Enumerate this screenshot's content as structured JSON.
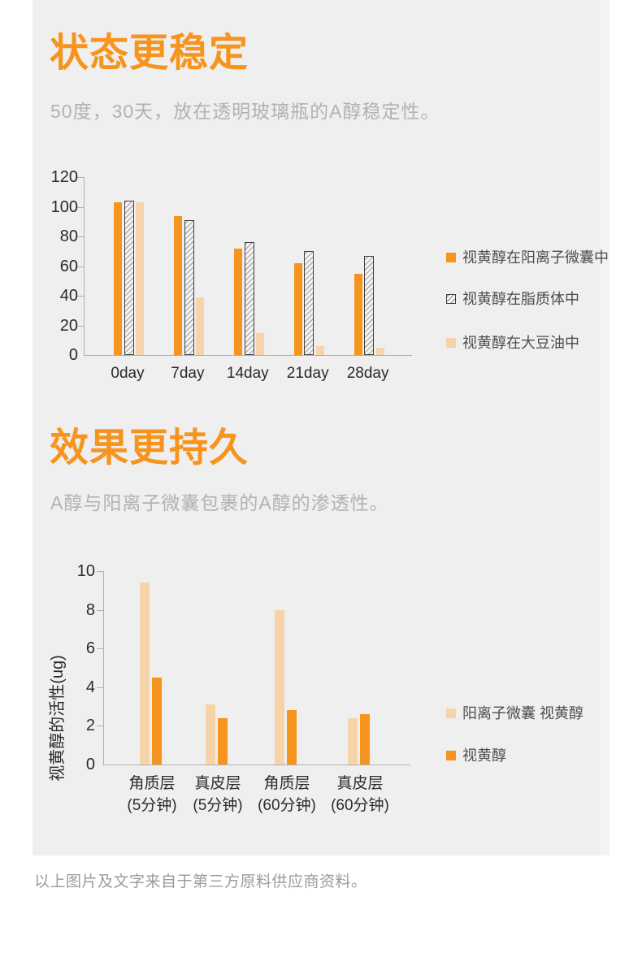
{
  "sections": [
    {
      "title": "状态更稳定",
      "subtitle": "50度，30天，放在透明玻璃瓶的A醇稳定性。"
    },
    {
      "title": "效果更持久",
      "subtitle": "A醇与阳离子微囊包裹的A醇的渗透性。"
    }
  ],
  "footnote": "以上图片及文字来自于第三方原料供应商资料。",
  "colors": {
    "accent_orange": "#f7941e",
    "peach": "#f6d3a8",
    "panel_bg": "#efefef",
    "axis_line": "#b0b0b0",
    "tick_text": "#2b2b2b",
    "legend_text": "#4d4d4d",
    "subtitle_text": "#b2b2b2",
    "footnote_text": "#9b9b9b"
  },
  "chart_data": [
    {
      "type": "bar",
      "title": "50度，30天，放在透明玻璃瓶的A醇稳定性",
      "categories": [
        "0day",
        "7day",
        "14day",
        "21day",
        "28day"
      ],
      "series": [
        {
          "name": "视黄醇在阳离子微囊中",
          "style": "orange",
          "color": "#f7941e",
          "values": [
            103,
            94,
            72,
            62,
            55
          ]
        },
        {
          "name": "视黄醇在脂质体中",
          "style": "hatch",
          "color": "white with gray diagonal hatching, dark border",
          "values": [
            104,
            91,
            76,
            70,
            67
          ]
        },
        {
          "name": "视黄醇在大豆油中",
          "style": "peach",
          "color": "#f6d3a8",
          "values": [
            103,
            39,
            15,
            6,
            5
          ]
        }
      ],
      "xlabel": "",
      "ylabel": "",
      "ylim": [
        0,
        120
      ],
      "yticks": [
        0,
        20,
        40,
        60,
        80,
        100,
        120
      ],
      "grid": false,
      "legend_position": "right"
    },
    {
      "type": "bar",
      "title": "A醇与阳离子微囊包裹的A醇的渗透性",
      "categories": [
        [
          "角质层",
          "(5分钟)"
        ],
        [
          "真皮层",
          "(5分钟)"
        ],
        [
          "角质层",
          "(60分钟)"
        ],
        [
          "真皮层",
          "(60分钟)"
        ]
      ],
      "series": [
        {
          "name": "阳离子微囊 视黄醇",
          "style": "peach",
          "color": "#f6d3a8",
          "values": [
            9.4,
            3.1,
            8.0,
            2.4
          ]
        },
        {
          "name": "视黄醇",
          "style": "orange",
          "color": "#f7941e",
          "values": [
            4.5,
            2.4,
            2.8,
            2.6
          ]
        }
      ],
      "xlabel": "",
      "ylabel": "视黄醇的活性(ug)",
      "ylim": [
        0,
        10
      ],
      "yticks": [
        0,
        2,
        4,
        6,
        8,
        10
      ],
      "grid": false,
      "legend_position": "right"
    }
  ]
}
